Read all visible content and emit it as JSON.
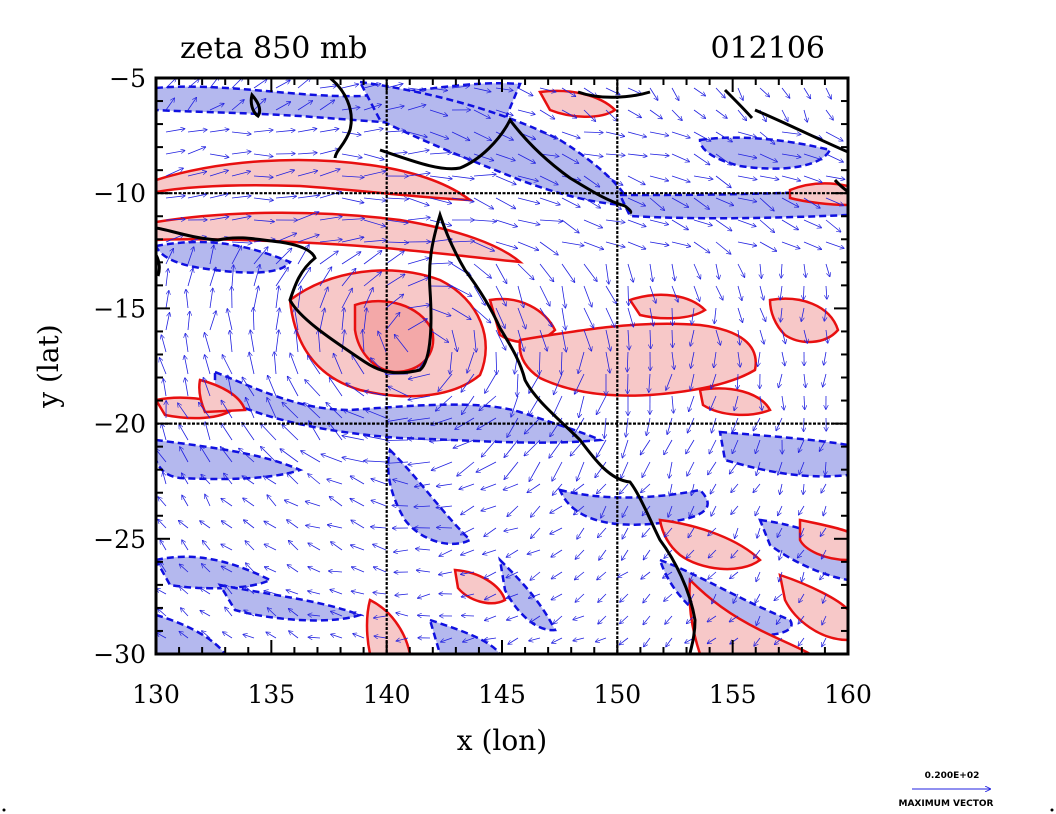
{
  "chart_data": {
    "type": "contour",
    "title": "zeta 850 mb",
    "timestamp": "012106",
    "xlabel": "x (lon)",
    "ylabel": "y (lat)",
    "xlim": [
      130,
      160
    ],
    "ylim": [
      -30,
      -5
    ],
    "xticks": [
      130,
      135,
      140,
      145,
      150,
      155,
      160
    ],
    "yticks": [
      -5,
      -10,
      -15,
      -20,
      -25,
      -30
    ],
    "xtick_labels": [
      "130",
      "135",
      "140",
      "145",
      "150",
      "155",
      "160"
    ],
    "ytick_labels": [
      "−5",
      "−10",
      "−15",
      "−20",
      "−25",
      "−30"
    ],
    "grid_lines": {
      "lon": [
        140,
        150
      ],
      "lat": [
        -10,
        -20
      ]
    },
    "positive_fill_color": "#f7c8c8",
    "positive_line_color": "#e81010",
    "negative_fill_color": "#b4b8ee",
    "negative_line_color": "#1010e0",
    "coast_color": "#000000",
    "vector_color": "#2020e0",
    "cyclone_center": {
      "lon": 141.3,
      "lat": -16.5
    },
    "vector_legend": {
      "value": "0.200E+02",
      "label": "MAXIMUM VECTOR"
    }
  }
}
